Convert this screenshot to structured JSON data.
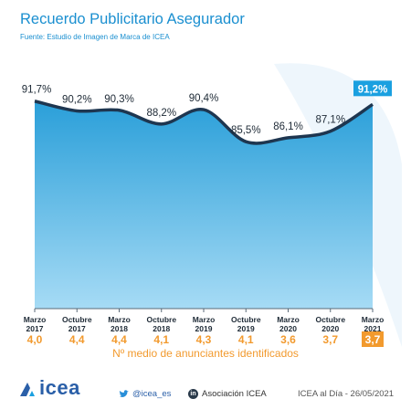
{
  "header": {
    "title": "Recuerdo Publicitario Asegurador",
    "source": "Fuente: Estudio de Imagen de Marca de ICEA"
  },
  "chart_data": {
    "type": "area",
    "categories": [
      [
        "Marzo",
        "2017"
      ],
      [
        "Octubre",
        "2017"
      ],
      [
        "Marzo",
        "2018"
      ],
      [
        "Octubre",
        "2018"
      ],
      [
        "Marzo",
        "2019"
      ],
      [
        "Octubre",
        "2019"
      ],
      [
        "Marzo",
        "2020"
      ],
      [
        "Octubre",
        "2020"
      ],
      [
        "Marzo",
        "2021"
      ]
    ],
    "series": [
      {
        "values": [
          91.7,
          90.2,
          90.3,
          88.2,
          90.4,
          85.5,
          86.1,
          87.1,
          91.2
        ],
        "labels": [
          "91,7%",
          "90,2%",
          "90,3%",
          "88,2%",
          "90,4%",
          "85,5%",
          "86,1%",
          "87,1%",
          "91,2%"
        ]
      }
    ],
    "secondary_row": {
      "label": "Nº medio de anunciantes identificados",
      "values": [
        4.0,
        4.4,
        4.4,
        4.1,
        4.3,
        4.1,
        3.6,
        3.7,
        3.7
      ],
      "labels": [
        "4,0",
        "4,4",
        "4,4",
        "4,1",
        "4,3",
        "4,1",
        "3,6",
        "3,7",
        "3,7"
      ]
    },
    "highlight_last": true,
    "colors": {
      "area_top": "#2a9fd9",
      "area_bottom": "#a6dbf5",
      "line": "#1e3650",
      "highlight_bg": "#1aa0e0",
      "secondary_text": "#f29a2e",
      "secondary_highlight_bg": "#f29a2e",
      "title": "#1a8fd0"
    }
  },
  "footer": {
    "brand": "ICEA",
    "brand_display": "icea",
    "twitter": "@icea_es",
    "linkedin": "Asociación ICEA",
    "stamp": "ICEA al Día - 26/05/2021",
    "twitter_icon": "twitter-bird-icon",
    "linkedin_icon": "linkedin-icon",
    "logo_icon": "icea-logo-icon"
  }
}
